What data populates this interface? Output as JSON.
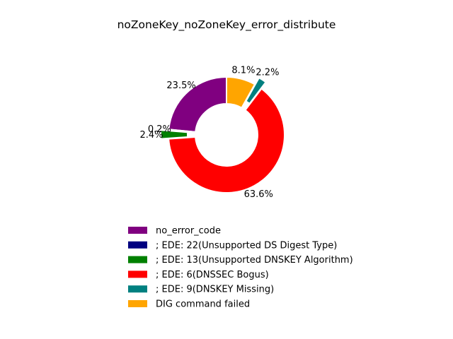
{
  "chart_data": {
    "type": "pie",
    "style": "donut",
    "title": "noZoneKey_noZoneKey_error_distribute",
    "legend_position": "bottom-center",
    "slices": [
      {
        "label": "no_error_code",
        "percent": 23.5,
        "percent_label": "23.5%",
        "color": "#800080",
        "exploded": false
      },
      {
        "label": "; EDE: 22(Unsupported DS Digest Type)",
        "percent": 0.2,
        "percent_label": "0.2%",
        "color": "#000080",
        "exploded": false
      },
      {
        "label": "; EDE: 13(Unsupported DNSKEY Algorithm)",
        "percent": 2.4,
        "percent_label": "2.4%",
        "color": "#008000",
        "exploded": true
      },
      {
        "label": "; EDE: 6(DNSSEC Bogus)",
        "percent": 63.6,
        "percent_label": "63.6%",
        "color": "#ff0000",
        "exploded": false
      },
      {
        "label": "; EDE: 9(DNSKEY Missing)",
        "percent": 2.2,
        "percent_label": "2.2%",
        "color": "#008080",
        "exploded": true
      },
      {
        "label": "DIG command failed",
        "percent": 8.1,
        "percent_label": "8.1%",
        "color": "#ffa500",
        "exploded": false
      }
    ]
  }
}
